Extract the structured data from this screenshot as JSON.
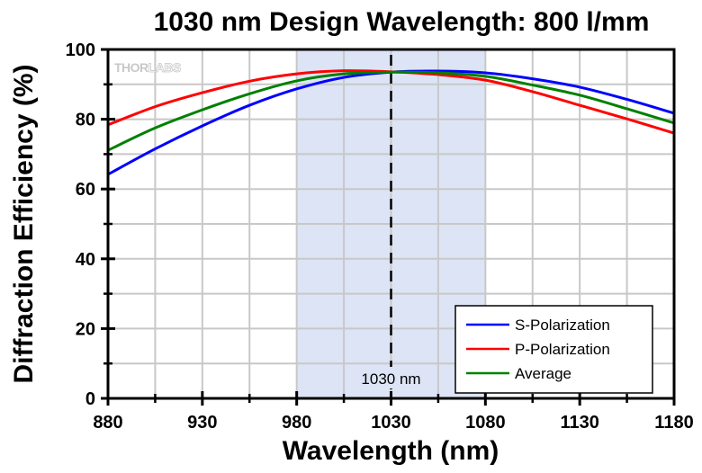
{
  "chart_data": {
    "type": "line",
    "title": "1030 nm Design Wavelength: 800 l/mm",
    "xlabel": "Wavelength (nm)",
    "ylabel": "Diffraction Efficiency (%)",
    "xlim": [
      880,
      1180
    ],
    "ylim": [
      0,
      100
    ],
    "xticks": [
      880,
      930,
      980,
      1030,
      1080,
      1130,
      1180
    ],
    "yticks": [
      0,
      20,
      40,
      60,
      80,
      100
    ],
    "grid": true,
    "legend_position": "bottom-right",
    "watermark": {
      "left": "THOR",
      "right": "LABS"
    },
    "shaded_region": {
      "x_start": 980,
      "x_end": 1080,
      "color": "#dce4f5"
    },
    "reference_line": {
      "x": 1030,
      "label": "1030 nm",
      "style": "dashed"
    },
    "x": [
      880,
      905,
      930,
      955,
      980,
      1005,
      1030,
      1055,
      1080,
      1105,
      1130,
      1155,
      1180
    ],
    "series": [
      {
        "name": "S-Polarization",
        "color": "#0000ff",
        "values": [
          64.2,
          71.5,
          78.1,
          84.0,
          88.7,
          92.0,
          93.5,
          93.8,
          93.3,
          91.6,
          89.2,
          85.7,
          81.7
        ]
      },
      {
        "name": "P-Polarization",
        "color": "#ff0000",
        "values": [
          78.4,
          83.6,
          87.6,
          90.9,
          93.0,
          93.9,
          93.6,
          92.8,
          91.2,
          87.9,
          84.0,
          80.1,
          76.0
        ]
      },
      {
        "name": "Average",
        "color": "#008000",
        "values": [
          71.1,
          77.5,
          82.7,
          87.3,
          91.0,
          93.0,
          93.5,
          93.3,
          92.3,
          89.8,
          86.9,
          83.0,
          78.9
        ]
      }
    ]
  }
}
